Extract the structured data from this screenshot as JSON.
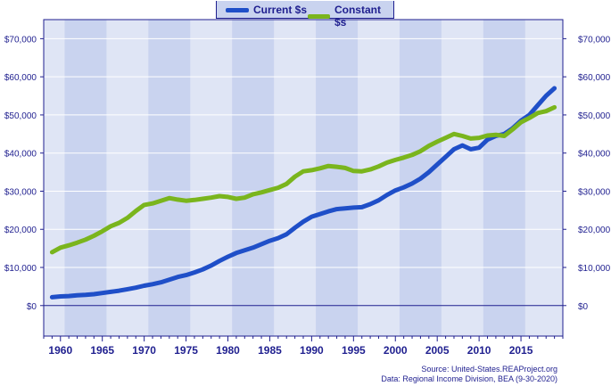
{
  "chart_data": {
    "type": "line",
    "title": "",
    "xlabel": "",
    "ylabel": "",
    "xlim": [
      1958,
      2020
    ],
    "ylim": [
      -8000,
      75000
    ],
    "x_ticks": [
      1960,
      1965,
      1970,
      1975,
      1980,
      1985,
      1990,
      1995,
      2000,
      2005,
      2010,
      2015
    ],
    "x_tick_labels": [
      "1960",
      "1965",
      "1970",
      "1975",
      "1980",
      "1985",
      "1990",
      "1995",
      "2000",
      "2005",
      "2010",
      "2015"
    ],
    "y_ticks": [
      0,
      10000,
      20000,
      30000,
      40000,
      50000,
      60000,
      70000
    ],
    "y_tick_labels": [
      "$0",
      "$10,000",
      "$20,000",
      "$30,000",
      "$40,000",
      "$50,000",
      "$60,000",
      "$70,000"
    ],
    "grid": "alternating vertical bands, horizontal gridlines",
    "legend_position": "top-center",
    "series": [
      {
        "name": "Current $s",
        "color": "#1f4fc8",
        "x": [
          1959,
          1960,
          1961,
          1962,
          1963,
          1964,
          1965,
          1966,
          1967,
          1968,
          1969,
          1970,
          1971,
          1972,
          1973,
          1974,
          1975,
          1976,
          1977,
          1978,
          1979,
          1980,
          1981,
          1982,
          1983,
          1984,
          1985,
          1986,
          1987,
          1988,
          1989,
          1990,
          1991,
          1992,
          1993,
          1994,
          1995,
          1996,
          1997,
          1998,
          1999,
          2000,
          2001,
          2002,
          2003,
          2004,
          2005,
          2006,
          2007,
          2008,
          2009,
          2010,
          2011,
          2012,
          2013,
          2014,
          2015,
          2016,
          2017,
          2018,
          2019
        ],
        "values": [
          2200,
          2400,
          2500,
          2700,
          2800,
          3000,
          3300,
          3600,
          3900,
          4300,
          4700,
          5200,
          5600,
          6100,
          6800,
          7500,
          8000,
          8700,
          9500,
          10500,
          11700,
          12800,
          13800,
          14500,
          15200,
          16100,
          17000,
          17700,
          18700,
          20400,
          22000,
          23300,
          24000,
          24700,
          25300,
          25500,
          25700,
          25800,
          26600,
          27600,
          29000,
          30200,
          31000,
          32000,
          33300,
          35000,
          37000,
          39000,
          41000,
          42000,
          41000,
          41400,
          43500,
          44500,
          45000,
          46500,
          48500,
          50000,
          52500,
          55000,
          57000
        ]
      },
      {
        "name": "Constant $s",
        "color": "#7ab51d",
        "x": [
          1959,
          1960,
          1961,
          1962,
          1963,
          1964,
          1965,
          1966,
          1967,
          1968,
          1969,
          1970,
          1971,
          1972,
          1973,
          1974,
          1975,
          1976,
          1977,
          1978,
          1979,
          1980,
          1981,
          1982,
          1983,
          1984,
          1985,
          1986,
          1987,
          1988,
          1989,
          1990,
          1991,
          1992,
          1993,
          1994,
          1995,
          1996,
          1997,
          1998,
          1999,
          2000,
          2001,
          2002,
          2003,
          2004,
          2005,
          2006,
          2007,
          2008,
          2009,
          2010,
          2011,
          2012,
          2013,
          2014,
          2015,
          2016,
          2017,
          2018,
          2019
        ],
        "values": [
          14000,
          15200,
          15800,
          16500,
          17300,
          18300,
          19500,
          20800,
          21700,
          23000,
          24800,
          26400,
          26800,
          27500,
          28200,
          27800,
          27500,
          27700,
          28000,
          28300,
          28700,
          28500,
          28000,
          28300,
          29200,
          29700,
          30300,
          30900,
          31900,
          33800,
          35200,
          35500,
          36000,
          36600,
          36400,
          36100,
          35300,
          35200,
          35700,
          36500,
          37500,
          38200,
          38800,
          39500,
          40500,
          41900,
          43000,
          44000,
          45000,
          44500,
          43800,
          44000,
          44600,
          44800,
          44500,
          46200,
          48100,
          49200,
          50500,
          51000,
          52000
        ]
      }
    ],
    "source_line_1": "Source: United-States.REAProject.org",
    "source_line_2": "Data: Regional Income Division, BEA (9-30-2020)"
  }
}
